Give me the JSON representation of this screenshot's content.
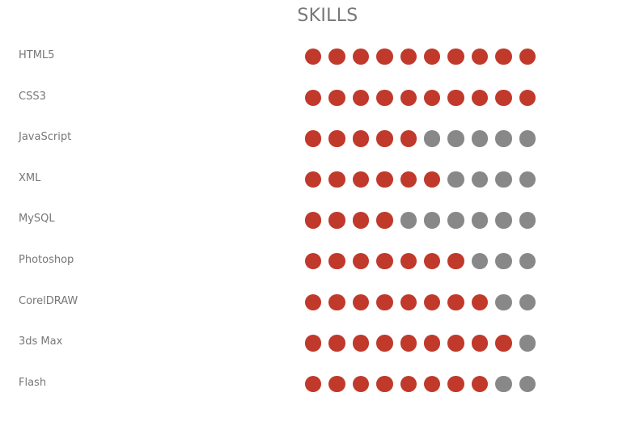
{
  "title": "SKILLS",
  "max_level": 10,
  "colors": {
    "filled": "#c0392b",
    "empty": "#888888",
    "text": "#777777"
  },
  "skills": [
    {
      "name": "HTML5",
      "level": 10
    },
    {
      "name": "CSS3",
      "level": 10
    },
    {
      "name": "JavaScript",
      "level": 5
    },
    {
      "name": "XML",
      "level": 6
    },
    {
      "name": "MySQL",
      "level": 4
    },
    {
      "name": "Photoshop",
      "level": 7
    },
    {
      "name": "CorelDRAW",
      "level": 8
    },
    {
      "name": "3ds Max",
      "level": 9
    },
    {
      "name": "Flash",
      "level": 8
    }
  ]
}
